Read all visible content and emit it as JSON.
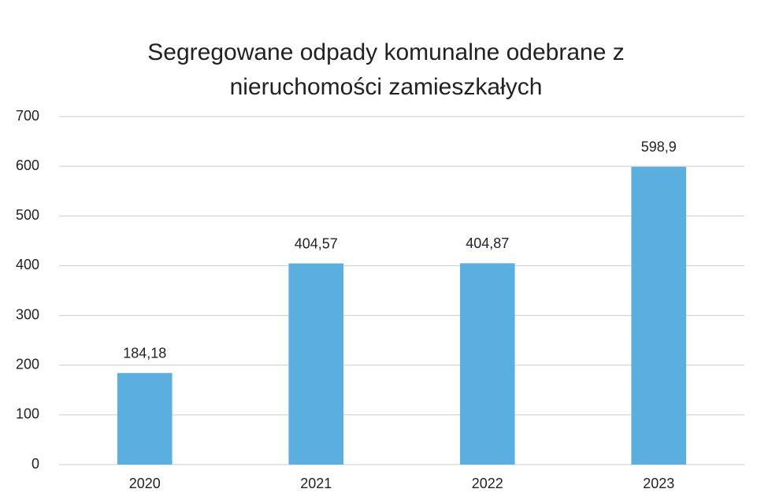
{
  "chart_data": {
    "type": "bar",
    "title": "Segregowane odpady komunalne odebrane z nieruchomości zamieszkałych",
    "categories": [
      "2020",
      "2021",
      "2022",
      "2023"
    ],
    "values": [
      184.18,
      404.57,
      404.87,
      598.9
    ],
    "value_labels": [
      "184,18",
      "404,57",
      "404,87",
      "598,9"
    ],
    "color": "#5aaee0",
    "ylim": [
      0,
      700
    ],
    "yticks": [
      0,
      100,
      200,
      300,
      400,
      500,
      600,
      700
    ],
    "grid": true
  }
}
